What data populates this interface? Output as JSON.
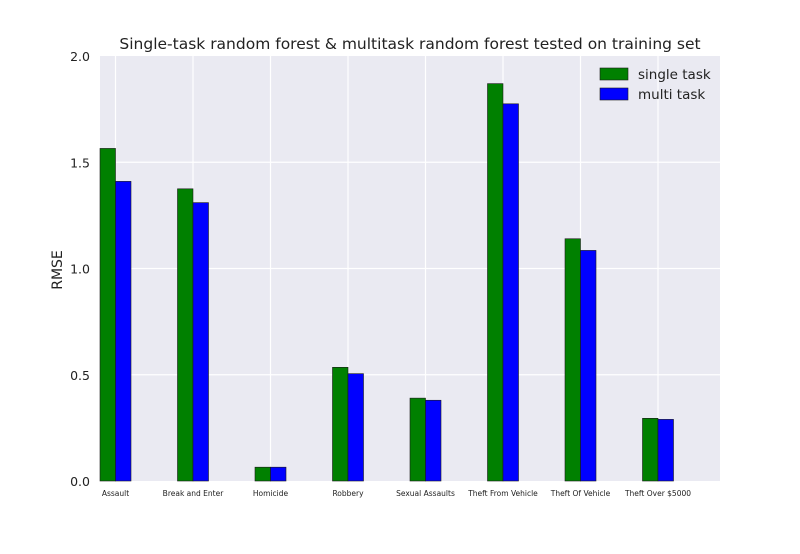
{
  "chart_data": {
    "type": "bar",
    "title": "Single-task random forest & multitask random forest tested on training set",
    "xlabel": "",
    "ylabel": "RMSE",
    "ylim": [
      0,
      2.0
    ],
    "yticks": [
      "0.0",
      "0.5",
      "1.0",
      "1.5",
      "2.0"
    ],
    "grid": true,
    "legend_position": "top-right",
    "categories": [
      "Assault",
      "Break and Enter",
      "Homicide",
      "Robbery",
      "Sexual Assaults",
      "Theft From Vehicle",
      "Theft Of Vehicle",
      "Theft Over $5000"
    ],
    "series": [
      {
        "name": "single task",
        "color": "#008000",
        "values": [
          1.565,
          1.375,
          0.065,
          0.535,
          0.39,
          1.87,
          1.14,
          0.295
        ]
      },
      {
        "name": "multi task",
        "color": "#0000ff",
        "values": [
          1.41,
          1.31,
          0.065,
          0.505,
          0.38,
          1.775,
          1.085,
          0.29
        ]
      }
    ]
  }
}
